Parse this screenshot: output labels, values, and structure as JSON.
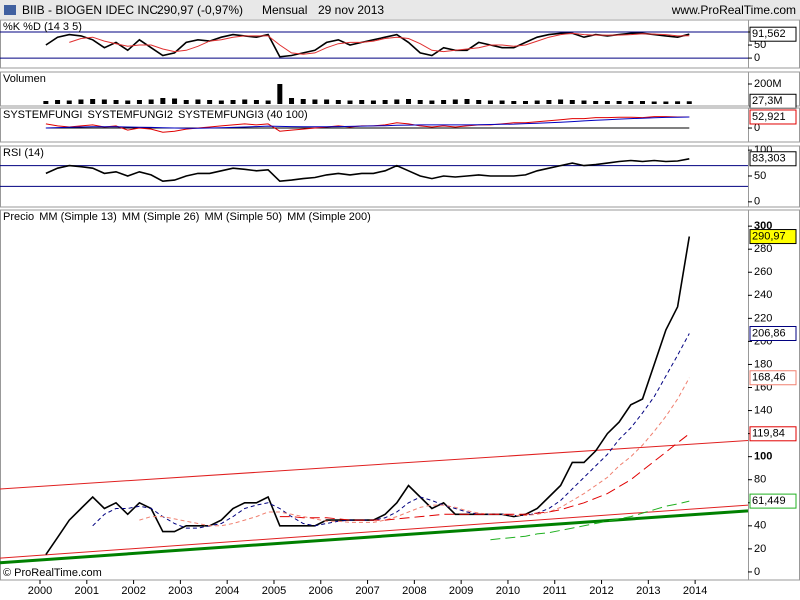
{
  "header": {
    "symbol": "BIIB - BIOGEN IDEC INC.",
    "quote": "290,97 (-0,97%)",
    "period": "Mensual",
    "date": "29 nov 2013",
    "site": "www.ProRealTime.com"
  },
  "footer": "© ProRealTime.com",
  "chart_data": [
    {
      "type": "line",
      "title": "%K %D (14 3 5)",
      "ylim": [
        -38,
        146
      ],
      "yticks": [
        0,
        50,
        100
      ],
      "levels": [
        0,
        100
      ],
      "level_color": "#000080",
      "series": [
        {
          "name": "%K",
          "color": "#000000",
          "last_label": "91,562",
          "values": [
            50,
            80,
            90,
            85,
            70,
            40,
            60,
            30,
            70,
            40,
            10,
            20,
            60,
            70,
            65,
            80,
            90,
            85,
            80,
            90,
            5,
            10,
            20,
            30,
            60,
            70,
            50,
            60,
            70,
            80,
            90,
            60,
            20,
            10,
            40,
            30,
            30,
            60,
            50,
            40,
            40,
            60,
            80,
            90,
            95,
            95,
            80,
            90,
            85,
            90,
            95,
            95,
            90,
            85,
            80,
            91.562
          ]
        },
        {
          "name": "%D",
          "color": "#e03030",
          "values": [
            null,
            null,
            60,
            75,
            80,
            65,
            55,
            45,
            50,
            50,
            35,
            25,
            30,
            45,
            65,
            70,
            80,
            85,
            85,
            85,
            50,
            20,
            15,
            20,
            40,
            55,
            60,
            60,
            65,
            75,
            80,
            75,
            55,
            30,
            25,
            30,
            35,
            40,
            50,
            50,
            45,
            50,
            65,
            80,
            90,
            95,
            90,
            88,
            88,
            88,
            90,
            93,
            92,
            90,
            85,
            86
          ]
        }
      ]
    },
    {
      "type": "bar",
      "title": "Volumen",
      "ylim": [
        -20,
        320
      ],
      "yticks": [
        {
          "value": 200,
          "label": "200M"
        }
      ],
      "series": [
        {
          "name": "Volumen",
          "color": "#000000",
          "last_label": "27,3M",
          "values": [
            30,
            40,
            35,
            45,
            50,
            45,
            40,
            35,
            40,
            45,
            60,
            55,
            40,
            45,
            40,
            35,
            40,
            45,
            40,
            35,
            200,
            60,
            50,
            45,
            45,
            40,
            35,
            40,
            35,
            40,
            45,
            50,
            40,
            35,
            40,
            45,
            50,
            40,
            35,
            35,
            30,
            30,
            35,
            40,
            45,
            40,
            35,
            30,
            30,
            30,
            30,
            30,
            25,
            25,
            27,
            27.3
          ]
        }
      ]
    },
    {
      "type": "line",
      "ylim": [
        -67,
        96
      ],
      "yticks": [
        0
      ],
      "series": [
        {
          "name": "SYSTEMFUNGI",
          "color": "#000000",
          "values": [
            0,
            0,
            0,
            0,
            0,
            0,
            0,
            0,
            0,
            0,
            0,
            0,
            0,
            0,
            0,
            0,
            0,
            0,
            0,
            0,
            0,
            0,
            0,
            0,
            0,
            0,
            0,
            0,
            0,
            0,
            0,
            0,
            0,
            0,
            0,
            0,
            0,
            0,
            0,
            0,
            0,
            0,
            0,
            0,
            0,
            0,
            0,
            0,
            0,
            0,
            0,
            0,
            0,
            0,
            0,
            0
          ]
        },
        {
          "name": "SYSTEMFUNGI2",
          "color": "#e00000",
          "last_label": "52,921",
          "values": [
            20,
            10,
            5,
            10,
            15,
            5,
            10,
            -10,
            0,
            -5,
            -20,
            -15,
            -5,
            0,
            5,
            10,
            15,
            20,
            15,
            20,
            -15,
            -10,
            -5,
            0,
            5,
            10,
            5,
            10,
            10,
            15,
            25,
            20,
            10,
            5,
            10,
            5,
            10,
            15,
            15,
            20,
            25,
            25,
            30,
            35,
            40,
            45,
            45,
            50,
            50,
            52,
            52,
            50,
            55,
            55,
            53,
            52.921
          ]
        },
        {
          "name": "SYSTEMFUNGI3 (40 100)",
          "color": "#0000c0",
          "values": [
            0,
            2,
            4,
            5,
            6,
            6,
            6,
            5,
            4,
            3,
            1,
            0,
            -1,
            -1,
            0,
            1,
            3,
            5,
            7,
            9,
            8,
            7,
            6,
            6,
            6,
            7,
            8,
            9,
            10,
            11,
            13,
            14,
            15,
            15,
            15,
            15,
            15,
            16,
            17,
            18,
            19,
            21,
            23,
            25,
            28,
            31,
            34,
            37,
            40,
            43,
            45,
            47,
            49,
            51,
            52,
            53
          ]
        }
      ]
    },
    {
      "type": "line",
      "title": "RSI (14)",
      "ylim": [
        -10,
        108
      ],
      "yticks": [
        0,
        50,
        100
      ],
      "levels": [
        30,
        70
      ],
      "level_color": "#000080",
      "series": [
        {
          "name": "RSI",
          "color": "#000000",
          "last_label": "83,303",
          "values": [
            55,
            65,
            70,
            68,
            65,
            55,
            58,
            50,
            58,
            52,
            40,
            42,
            50,
            55,
            55,
            60,
            65,
            63,
            60,
            62,
            40,
            42,
            45,
            47,
            52,
            55,
            52,
            55,
            55,
            60,
            70,
            60,
            50,
            45,
            50,
            48,
            50,
            52,
            50,
            50,
            50,
            52,
            60,
            65,
            70,
            75,
            70,
            72,
            75,
            78,
            80,
            78,
            80,
            78,
            79,
            83.303
          ]
        }
      ]
    },
    {
      "type": "line",
      "title": "Precio",
      "ylim": [
        -7,
        314
      ],
      "yticks": [
        0,
        20,
        40,
        60,
        80,
        100,
        120,
        140,
        160,
        180,
        200,
        220,
        240,
        260,
        280,
        300
      ],
      "xlim": [
        1999.145,
        2015.13
      ],
      "xticks": [
        2000,
        2001,
        2002,
        2003,
        2004,
        2005,
        2006,
        2007,
        2008,
        2009,
        2010,
        2011,
        2012,
        2013,
        2014
      ],
      "x": [
        2000.125,
        2000.375,
        2000.625,
        2000.875,
        2001.125,
        2001.375,
        2001.625,
        2001.875,
        2002.125,
        2002.375,
        2002.625,
        2002.875,
        2003.125,
        2003.375,
        2003.625,
        2003.875,
        2004.125,
        2004.375,
        2004.625,
        2004.875,
        2005.125,
        2005.375,
        2005.625,
        2005.875,
        2006.125,
        2006.375,
        2006.625,
        2006.875,
        2007.125,
        2007.375,
        2007.625,
        2007.875,
        2008.125,
        2008.375,
        2008.625,
        2008.875,
        2009.125,
        2009.375,
        2009.625,
        2009.875,
        2010.125,
        2010.375,
        2010.625,
        2010.875,
        2011.125,
        2011.375,
        2011.625,
        2011.875,
        2012.125,
        2012.375,
        2012.625,
        2012.875,
        2013.125,
        2013.375,
        2013.625,
        2013.875
      ],
      "trendlines": [
        {
          "color": "#e02020",
          "values": [
            72,
            114
          ]
        },
        {
          "color": "#e02020",
          "values": [
            12,
            58
          ]
        },
        {
          "color": "#008000",
          "values": [
            8,
            53
          ]
        }
      ],
      "series": [
        {
          "name": "Precio",
          "color": "#000000",
          "last_label": "290,97",
          "label_bg": "#ffff00",
          "values": [
            15,
            30,
            45,
            55,
            65,
            55,
            60,
            50,
            60,
            55,
            35,
            35,
            40,
            40,
            40,
            45,
            55,
            60,
            60,
            65,
            40,
            40,
            40,
            40,
            45,
            45,
            45,
            45,
            45,
            50,
            60,
            75,
            65,
            55,
            60,
            50,
            50,
            50,
            50,
            50,
            48,
            50,
            55,
            65,
            75,
            95,
            95,
            105,
            120,
            130,
            145,
            150,
            180,
            210,
            230,
            290.97
          ]
        },
        {
          "name": "MM (Simple 13)",
          "color": "#000080",
          "dash": "4,3",
          "last_label": "206,86",
          "values": [
            null,
            null,
            null,
            null,
            40,
            50,
            55,
            55,
            57,
            55,
            48,
            42,
            38,
            38,
            40,
            42,
            48,
            55,
            58,
            60,
            55,
            48,
            42,
            40,
            42,
            44,
            45,
            45,
            45,
            47,
            52,
            60,
            65,
            62,
            58,
            55,
            52,
            50,
            50,
            50,
            49,
            49,
            51,
            55,
            62,
            72,
            82,
            92,
            102,
            115,
            125,
            138,
            152,
            170,
            188,
            206.86
          ]
        },
        {
          "name": "MM (Simple 26)",
          "color": "#f08070",
          "dash": "4,3",
          "last_label": "168,46",
          "values": [
            null,
            null,
            null,
            null,
            null,
            null,
            null,
            null,
            45,
            48,
            48,
            46,
            44,
            42,
            40,
            40,
            42,
            45,
            48,
            52,
            52,
            50,
            48,
            46,
            44,
            44,
            43,
            43,
            43,
            45,
            48,
            52,
            56,
            58,
            58,
            56,
            53,
            51,
            50,
            50,
            49,
            49,
            50,
            52,
            56,
            62,
            68,
            75,
            82,
            92,
            100,
            110,
            122,
            135,
            150,
            168.46
          ]
        },
        {
          "name": "MM (Simple 50)",
          "color": "#e00000",
          "dash": "10,5",
          "last_label": "119,84",
          "values": [
            null,
            null,
            null,
            null,
            null,
            null,
            null,
            null,
            null,
            null,
            null,
            null,
            null,
            null,
            null,
            null,
            null,
            null,
            null,
            null,
            48,
            48,
            47,
            47,
            47,
            46,
            45,
            45,
            45,
            45,
            46,
            47,
            48,
            49,
            50,
            50,
            50,
            50,
            50,
            50,
            50,
            50,
            51,
            52,
            54,
            57,
            60,
            64,
            68,
            74,
            80,
            88,
            96,
            104,
            112,
            119.84
          ]
        },
        {
          "name": "MM (Simple 200)",
          "color": "#20b020",
          "dash": "10,5",
          "last_label": "61,449",
          "values": [
            null,
            null,
            null,
            null,
            null,
            null,
            null,
            null,
            null,
            null,
            null,
            null,
            null,
            null,
            null,
            null,
            null,
            null,
            null,
            null,
            null,
            null,
            null,
            null,
            null,
            null,
            null,
            null,
            null,
            null,
            null,
            null,
            null,
            null,
            null,
            null,
            null,
            null,
            28,
            29,
            30,
            31,
            33,
            34,
            36,
            38,
            40,
            42,
            44,
            46,
            48,
            51,
            54,
            57,
            59,
            61.449
          ]
        }
      ]
    }
  ]
}
